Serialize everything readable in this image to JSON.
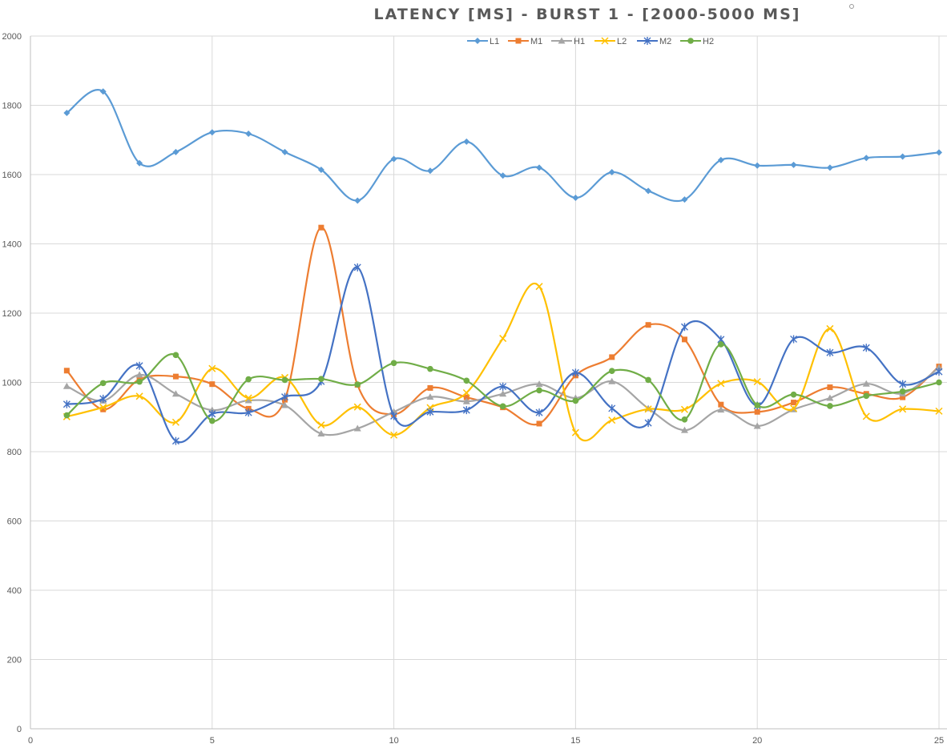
{
  "chart_data": {
    "type": "line",
    "title": "LATENCY [MS] - BURST 1 - [2000-5000 MS]",
    "xlabel": "",
    "ylabel": "",
    "xlim": [
      0,
      25
    ],
    "ylim": [
      0,
      2000
    ],
    "x_ticks": [
      0,
      5,
      10,
      15,
      20,
      25
    ],
    "y_ticks": [
      0,
      200,
      400,
      600,
      800,
      1000,
      1200,
      1400,
      1600,
      1800,
      2000
    ],
    "grid": true,
    "legend_position": "top",
    "x": [
      1,
      2,
      3,
      4,
      5,
      6,
      7,
      8,
      9,
      10,
      11,
      12,
      13,
      14,
      15,
      16,
      17,
      18,
      19,
      20,
      21,
      22,
      23,
      24,
      25
    ],
    "series": [
      {
        "name": "L1",
        "color": "#5B9BD5",
        "marker": "diamond",
        "values": [
          1778,
          1840,
          1633,
          1665,
          1722,
          1718,
          1665,
          1614,
          1525,
          1645,
          1611,
          1695,
          1597,
          1620,
          1533,
          1607,
          1553,
          1528,
          1642,
          1626,
          1628,
          1620,
          1648,
          1652,
          1664
        ]
      },
      {
        "name": "M1",
        "color": "#ED7D31",
        "marker": "square",
        "values": [
          1034,
          922,
          1009,
          1017,
          995,
          924,
          950,
          1447,
          993,
          908,
          984,
          957,
          928,
          881,
          1020,
          1073,
          1166,
          1124,
          936,
          915,
          942,
          986,
          967,
          957,
          1046
        ]
      },
      {
        "name": "H1",
        "color": "#A5A5A5",
        "marker": "triangle",
        "values": [
          989,
          947,
          1022,
          967,
          920,
          948,
          934,
          852,
          867,
          915,
          958,
          945,
          967,
          995,
          955,
          1003,
          925,
          862,
          921,
          874,
          922,
          955,
          996,
          968,
          1043
        ]
      },
      {
        "name": "L2",
        "color": "#FFC000",
        "marker": "x",
        "values": [
          901,
          928,
          960,
          885,
          1040,
          955,
          1014,
          877,
          929,
          848,
          927,
          970,
          1127,
          1277,
          855,
          891,
          923,
          922,
          997,
          1002,
          925,
          1155,
          902,
          923,
          917
        ]
      },
      {
        "name": "M2",
        "color": "#4472C4",
        "marker": "star",
        "values": [
          937,
          953,
          1048,
          831,
          909,
          913,
          958,
          1003,
          1332,
          903,
          915,
          920,
          988,
          913,
          1028,
          925,
          883,
          1160,
          1124,
          933,
          1125,
          1086,
          1100,
          995,
          1031
        ]
      },
      {
        "name": "H2",
        "color": "#70AD47",
        "marker": "circle",
        "values": [
          905,
          998,
          1002,
          1079,
          889,
          1009,
          1007,
          1010,
          994,
          1056,
          1039,
          1005,
          931,
          977,
          947,
          1033,
          1007,
          893,
          1110,
          934,
          965,
          932,
          961,
          974,
          1000
        ]
      }
    ]
  }
}
